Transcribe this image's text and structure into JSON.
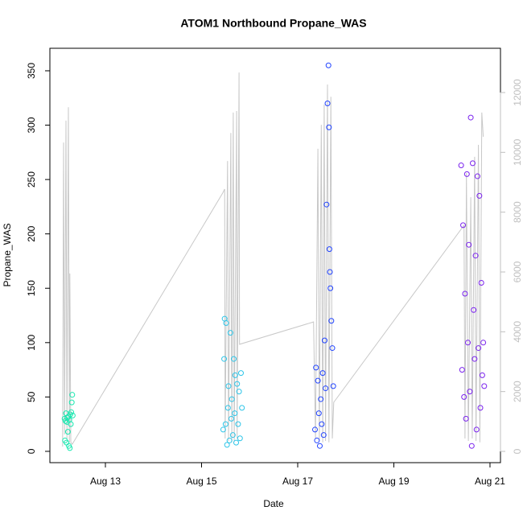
{
  "chart_data": {
    "type": "scatter",
    "title": "ATOM1 Northbound Propane_WAS",
    "xlabel": "Date",
    "ylabel": "Propane_WAS",
    "xlim": [
      11.845,
      21.218
    ],
    "xticks": [
      {
        "value": 13,
        "label": "Aug 13"
      },
      {
        "value": 15,
        "label": "Aug 15"
      },
      {
        "value": 17,
        "label": "Aug 17"
      },
      {
        "value": 19,
        "label": "Aug 19"
      },
      {
        "value": 21,
        "label": "Aug 21"
      }
    ],
    "ylim": [
      -10.4,
      370.7
    ],
    "yticks": [
      0,
      50,
      100,
      150,
      200,
      250,
      300,
      350
    ],
    "y2lim": [
      -377,
      13480
    ],
    "y2ticks": [
      0,
      2000,
      4000,
      6000,
      8000,
      10000,
      12000
    ],
    "y2color": "#bfbfbf",
    "series": [
      {
        "type": "line",
        "axis": "y2",
        "color": "#c8c8c8",
        "x": [
          12.11,
          12.13,
          12.15,
          12.18,
          12.2,
          12.23,
          12.25,
          12.26,
          12.28,
          12.31,
          15.44,
          15.48,
          15.49,
          15.54,
          15.56,
          15.61,
          15.63,
          15.66,
          15.68,
          15.73,
          15.74,
          15.78,
          15.79,
          17.33,
          17.37,
          17.42,
          17.45,
          17.49,
          17.52,
          17.55,
          17.58,
          17.62,
          17.65,
          17.69,
          17.72,
          17.75,
          20.46,
          20.48,
          20.51,
          20.55,
          20.6,
          20.63,
          20.68,
          20.71,
          20.76,
          20.79,
          20.83,
          20.86
        ],
        "values": [
          161,
          10330,
          565,
          11060,
          430,
          11510,
          300,
          5950,
          300,
          240,
          8640,
          8770,
          430,
          9710,
          350,
          10650,
          300,
          11330,
          350,
          11380,
          430,
          12670,
          3580,
          4330,
          430,
          10120,
          350,
          10920,
          300,
          11600,
          350,
          12270,
          300,
          11860,
          430,
          1640,
          7560,
          430,
          9310,
          350,
          8500,
          430,
          9850,
          350,
          10250,
          300,
          11330,
          10520
        ]
      },
      {
        "color": "#19e8b0",
        "x": [
          12.15,
          12.16,
          12.17,
          12.18,
          12.19,
          12.2,
          12.21,
          12.22,
          12.23,
          12.24,
          12.25,
          12.26,
          12.27,
          12.28,
          12.29,
          12.3,
          12.31,
          12.32
        ],
        "values": [
          30,
          10,
          28,
          35,
          8,
          27,
          31,
          18,
          32,
          5,
          29,
          3,
          34,
          25,
          36,
          45,
          52,
          33
        ]
      },
      {
        "color": "#2ec5e8",
        "x": [
          15.45,
          15.47,
          15.48,
          15.5,
          15.51,
          15.53,
          15.55,
          15.56,
          15.58,
          15.6,
          15.62,
          15.63,
          15.65,
          15.67,
          15.69,
          15.7,
          15.72,
          15.74,
          15.76,
          15.78,
          15.8,
          15.82,
          15.84
        ],
        "values": [
          20,
          85,
          122,
          25,
          118,
          6,
          40,
          60,
          10,
          109,
          30,
          48,
          15,
          85,
          35,
          70,
          8,
          62,
          25,
          55,
          12,
          72,
          40
        ]
      },
      {
        "color": "#2244ff",
        "x": [
          17.36,
          17.38,
          17.4,
          17.42,
          17.44,
          17.46,
          17.48,
          17.5,
          17.52,
          17.54,
          17.56,
          17.58,
          17.6,
          17.62,
          17.64,
          17.65,
          17.66,
          17.67,
          17.68,
          17.7,
          17.72,
          17.74
        ],
        "values": [
          20,
          77,
          10,
          65,
          35,
          5,
          48,
          25,
          72,
          15,
          102,
          58,
          227,
          320,
          355,
          298,
          186,
          165,
          150,
          120,
          95,
          60
        ]
      },
      {
        "color": "#7a22ee",
        "x": [
          20.4,
          20.42,
          20.44,
          20.46,
          20.48,
          20.5,
          20.52,
          20.54,
          20.56,
          20.58,
          20.6,
          20.62,
          20.64,
          20.66,
          20.68,
          20.7,
          20.72,
          20.74,
          20.76,
          20.78,
          20.8,
          20.82,
          20.84,
          20.86,
          20.88
        ],
        "values": [
          263,
          75,
          208,
          50,
          145,
          30,
          255,
          100,
          190,
          55,
          307,
          5,
          265,
          130,
          85,
          180,
          20,
          253,
          95,
          235,
          40,
          155,
          70,
          100,
          60
        ]
      }
    ]
  }
}
